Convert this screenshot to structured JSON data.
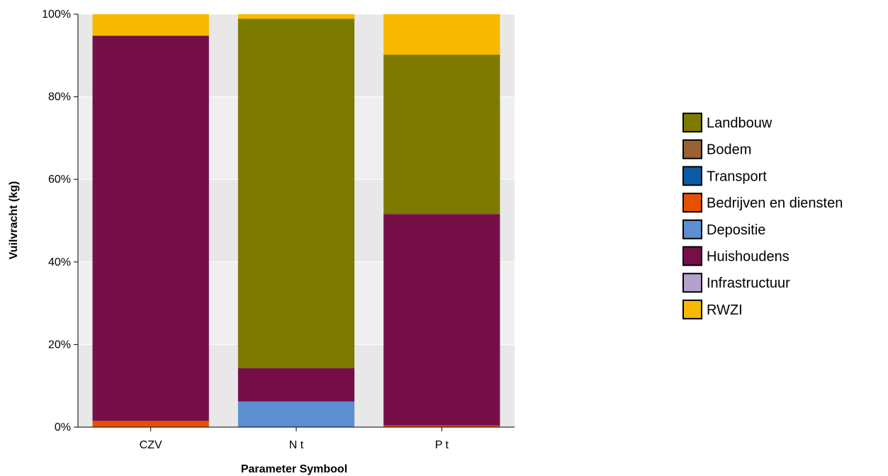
{
  "chart_data": {
    "type": "bar",
    "stacked": true,
    "normalized_percent": true,
    "categories": [
      "CZV",
      "N t",
      "P t"
    ],
    "ylim": [
      0,
      100
    ],
    "y_ticks": [
      "0%",
      "20%",
      "40%",
      "60%",
      "80%",
      "100%"
    ],
    "y_tick_values": [
      0,
      20,
      40,
      60,
      80,
      100
    ],
    "xlabel": "Parameter Symbool",
    "ylabel": "Vuilvracht (kg)",
    "grid": true,
    "legend_position": "right",
    "series": [
      {
        "name": "Bedrijven en diensten",
        "color": "#e65100",
        "values": [
          1.5,
          0,
          0.4
        ]
      },
      {
        "name": "Depositie",
        "color": "#5b8fd0",
        "values": [
          0,
          6.2,
          0
        ]
      },
      {
        "name": "Huishoudens",
        "color": "#760f48",
        "values": [
          93.3,
          8.1,
          51.2
        ]
      },
      {
        "name": "Landbouw",
        "color": "#7c7a00",
        "values": [
          0,
          84.6,
          38.6
        ]
      },
      {
        "name": "RWZI",
        "color": "#f9b900",
        "values": [
          5.2,
          1.1,
          9.8
        ]
      }
    ],
    "legend": [
      {
        "name": "Landbouw",
        "color": "#7c7a00"
      },
      {
        "name": "Bodem",
        "color": "#9a6233"
      },
      {
        "name": "Transport",
        "color": "#0a5aa4"
      },
      {
        "name": "Bedrijven en diensten",
        "color": "#e65100"
      },
      {
        "name": "Depositie",
        "color": "#5b8fd0"
      },
      {
        "name": "Huishoudens",
        "color": "#760f48"
      },
      {
        "name": "Infrastructuur",
        "color": "#b4a2cc"
      },
      {
        "name": "RWZI",
        "color": "#f9b900"
      }
    ]
  }
}
